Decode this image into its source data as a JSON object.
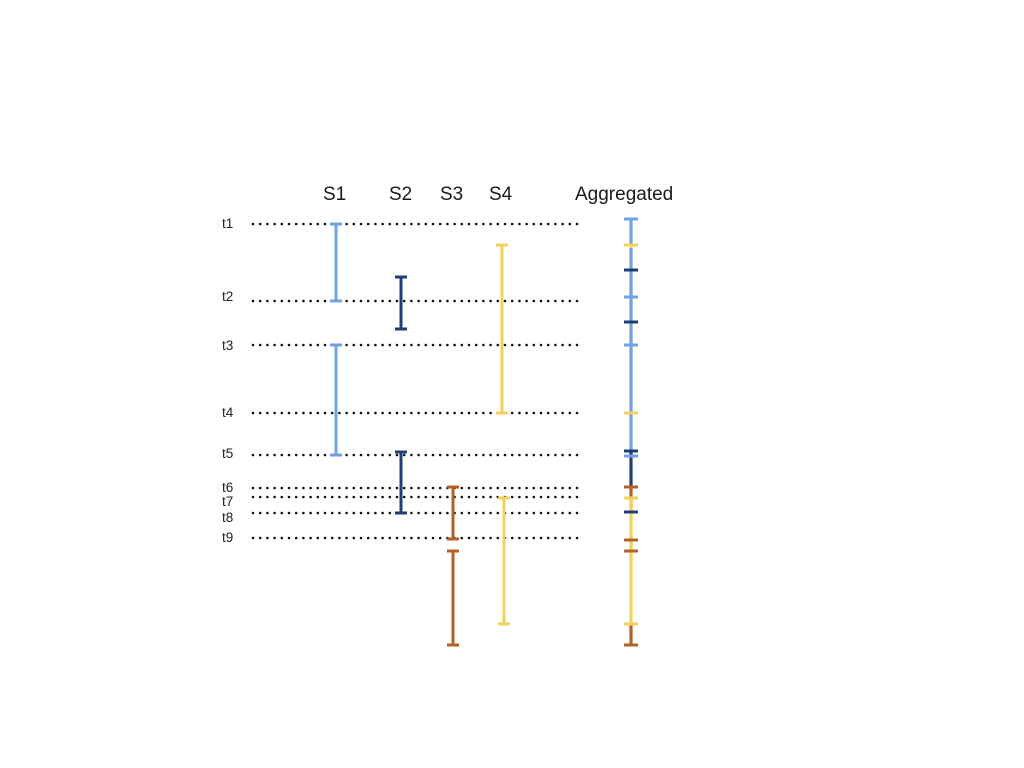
{
  "columns": {
    "s1": "S1",
    "s2": "S2",
    "s3": "S3",
    "s4": "S4",
    "aggregated": "Aggregated"
  },
  "time_marks": [
    "t1",
    "t2",
    "t3",
    "t4",
    "t5",
    "t6",
    "t7",
    "t8",
    "t9"
  ],
  "colors": {
    "s1": "#6fa3e6",
    "s2": "#1f3f73",
    "s3": "#b0622a",
    "s4": "#f2d15c",
    "dotted_line": "#111111"
  }
}
